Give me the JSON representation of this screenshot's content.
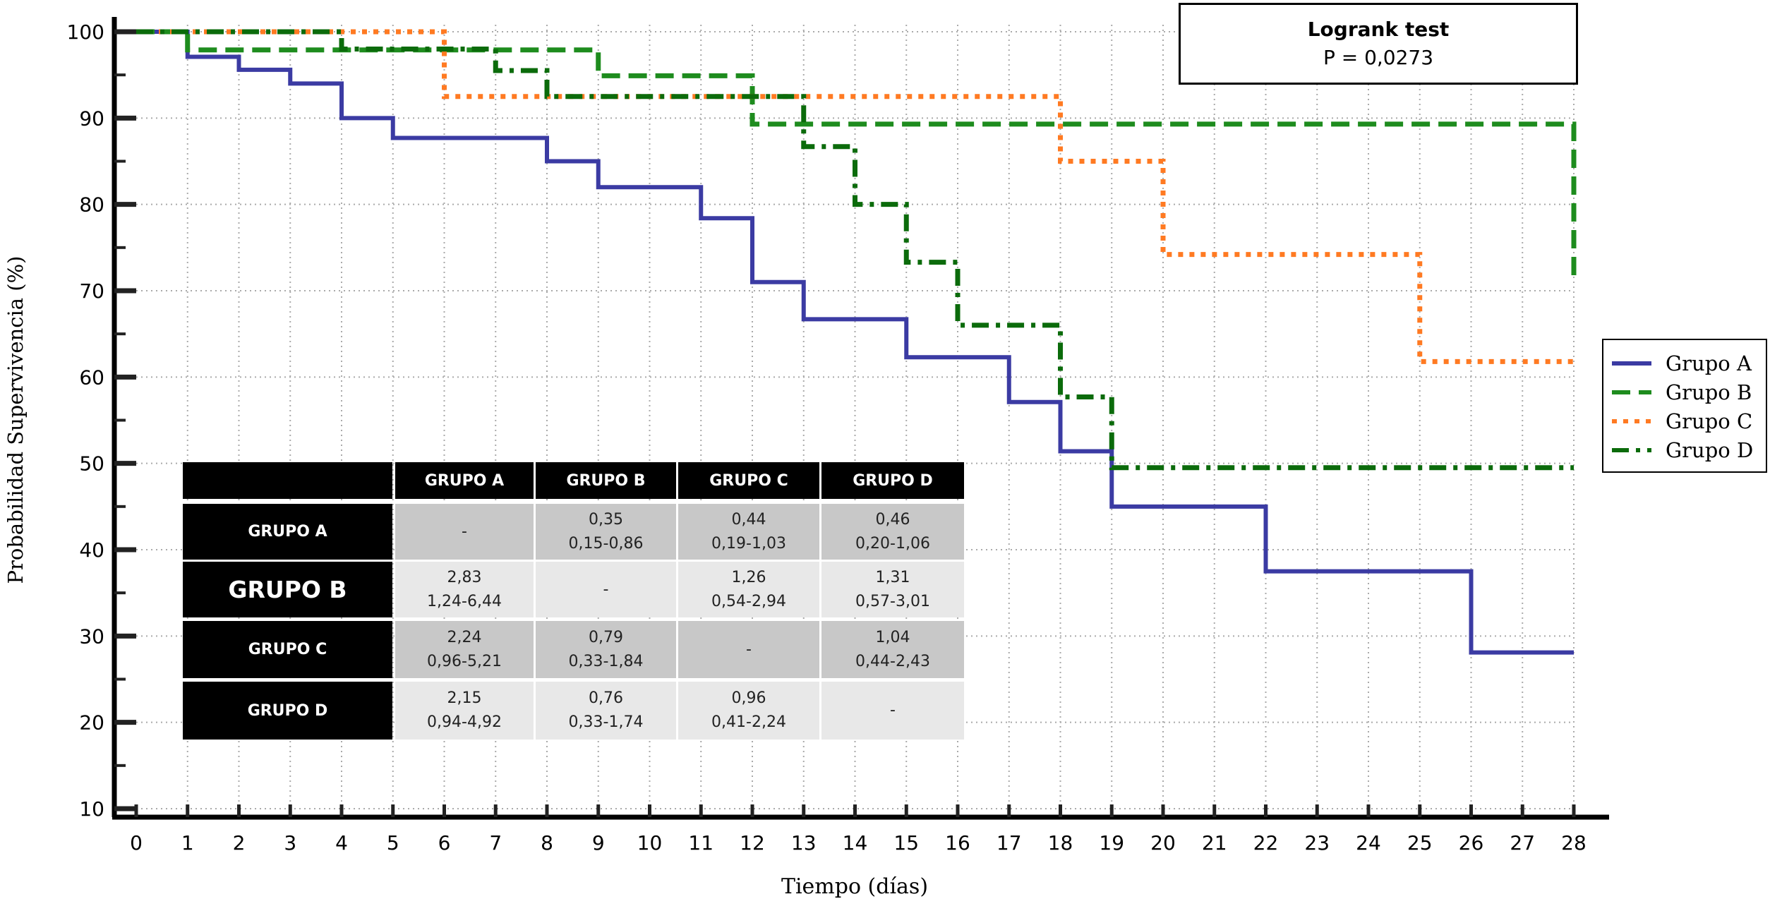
{
  "chart_data": {
    "type": "line",
    "subtype": "kaplan-meier-step",
    "title": "",
    "xlabel": "Tiempo (días)",
    "ylabel": "Probabilidad Supervivencia (%)",
    "xlim": [
      0,
      28
    ],
    "ylim": [
      10,
      100
    ],
    "xticks": [
      0,
      1,
      2,
      3,
      4,
      5,
      6,
      7,
      8,
      9,
      10,
      11,
      12,
      13,
      14,
      15,
      16,
      17,
      18,
      19,
      20,
      21,
      22,
      23,
      24,
      25,
      26,
      27,
      28
    ],
    "yticks": [
      10,
      20,
      30,
      40,
      50,
      60,
      70,
      80,
      90,
      100
    ],
    "grid": true,
    "legend_position": "right",
    "series": [
      {
        "name": "Grupo A",
        "style": "solid",
        "color": "#3b3ba3",
        "steps": [
          [
            0,
            100
          ],
          [
            1,
            97.1
          ],
          [
            2,
            95.6
          ],
          [
            3,
            94
          ],
          [
            4,
            90
          ],
          [
            5,
            87.7
          ],
          [
            8,
            85
          ],
          [
            9,
            82
          ],
          [
            11,
            78.4
          ],
          [
            12,
            71
          ],
          [
            13,
            66.7
          ],
          [
            15,
            62.3
          ],
          [
            17,
            57.1
          ],
          [
            18,
            51.4
          ],
          [
            19,
            45
          ],
          [
            22,
            37.5
          ],
          [
            26,
            28.1
          ],
          [
            28,
            28.1
          ]
        ]
      },
      {
        "name": "Grupo B",
        "style": "dashed",
        "color": "#1e8c1e",
        "steps": [
          [
            0,
            100
          ],
          [
            1,
            97.9
          ],
          [
            9,
            94.9
          ],
          [
            12,
            89.3
          ],
          [
            28,
            89.3
          ],
          [
            28,
            71.3
          ]
        ]
      },
      {
        "name": "Grupo C",
        "style": "dotted",
        "color": "#ff7a22",
        "steps": [
          [
            0,
            100
          ],
          [
            6,
            92.5
          ],
          [
            18,
            85
          ],
          [
            20,
            74.2
          ],
          [
            25,
            61.8
          ],
          [
            28,
            61.8
          ]
        ]
      },
      {
        "name": "Grupo D",
        "style": "dashdot",
        "color": "#0b6b0b",
        "steps": [
          [
            0,
            100
          ],
          [
            4,
            98
          ],
          [
            7,
            95.5
          ],
          [
            8,
            92.5
          ],
          [
            13,
            86.7
          ],
          [
            14,
            80
          ],
          [
            15,
            73.3
          ],
          [
            16,
            66
          ],
          [
            18,
            57.7
          ],
          [
            19,
            49.5
          ],
          [
            28,
            49.5
          ]
        ]
      }
    ],
    "annotation": {
      "title": "Logrank test",
      "value": "P = 0,0273"
    },
    "hazard_table": {
      "columns": [
        "GRUPO A",
        "GRUPO B",
        "GRUPO C",
        "GRUPO D"
      ],
      "rows": [
        {
          "label": "GRUPO A",
          "cells": [
            [
              "-",
              ""
            ],
            [
              "0,35",
              "0,15-0,86"
            ],
            [
              "0,44",
              "0,19-1,03"
            ],
            [
              "0,46",
              "0,20-1,06"
            ]
          ]
        },
        {
          "label": "GRUPO B",
          "cells": [
            [
              "2,83",
              "1,24-6,44"
            ],
            [
              "-",
              ""
            ],
            [
              "1,26",
              "0,54-2,94"
            ],
            [
              "1,31",
              "0,57-3,01"
            ]
          ]
        },
        {
          "label": "GRUPO C",
          "cells": [
            [
              "2,24",
              "0,96-5,21"
            ],
            [
              "0,79",
              "0,33-1,84"
            ],
            [
              "-",
              ""
            ],
            [
              "1,04",
              "0,44-2,43"
            ]
          ]
        },
        {
          "label": "GRUPO D",
          "cells": [
            [
              "2,15",
              "0,94-4,92"
            ],
            [
              "0,76",
              "0,33-1,74"
            ],
            [
              "0,96",
              "0,41-2,24"
            ],
            [
              "-",
              ""
            ]
          ]
        }
      ]
    }
  }
}
